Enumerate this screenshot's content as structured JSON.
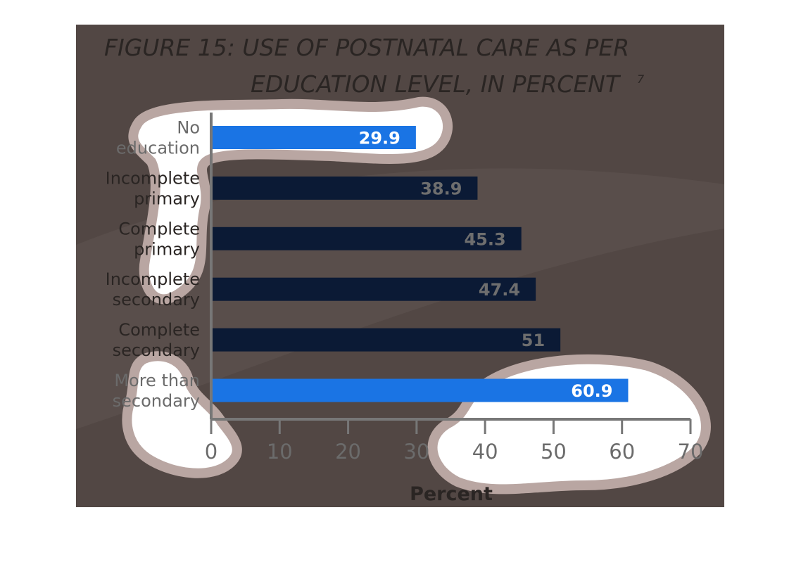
{
  "chart_data": {
    "type": "bar",
    "orientation": "horizontal",
    "title": "FIGURE 15: USE OF POSTNATAL CARE AS PER EDUCATION LEVEL, IN PERCENT",
    "title_lines": [
      "FIGURE 15: USE OF POSTNATAL CARE AS PER",
      "EDUCATION LEVEL, IN PERCENT"
    ],
    "footnote_mark": "7",
    "categories": [
      "No education",
      "Incomplete primary",
      "Complete primary",
      "Incomplete secondary",
      "Complete secondary",
      "More than secondary"
    ],
    "category_lines": [
      [
        "No",
        "education"
      ],
      [
        "Incomplete",
        "primary"
      ],
      [
        "Complete",
        "primary"
      ],
      [
        "Incomplete",
        "secondary"
      ],
      [
        "Complete",
        "secondary"
      ],
      [
        "More than",
        "secondary"
      ]
    ],
    "values": [
      29.9,
      38.9,
      45.3,
      47.4,
      51,
      60.9
    ],
    "value_labels": [
      "29.9",
      "38.9",
      "45.3",
      "47.4",
      "51",
      "60.9"
    ],
    "xlabel": "Percent",
    "ylabel": "",
    "xlim": [
      0,
      70
    ],
    "xticks": [
      0,
      10,
      20,
      30,
      40,
      50,
      60,
      70
    ],
    "grid": false,
    "legend": "none",
    "colors": {
      "background": "#524744",
      "bar_default": "#0b1a35",
      "bar_highlight": "#1a74e4",
      "highlighted_categories": [
        "No education",
        "More than secondary"
      ],
      "axis": "#777777",
      "text_on_dark": "#2a2523",
      "text_on_light": "#6b6b6b",
      "value_on_dark": "#6e6e6e",
      "value_on_highlight": "#ffffff"
    }
  }
}
